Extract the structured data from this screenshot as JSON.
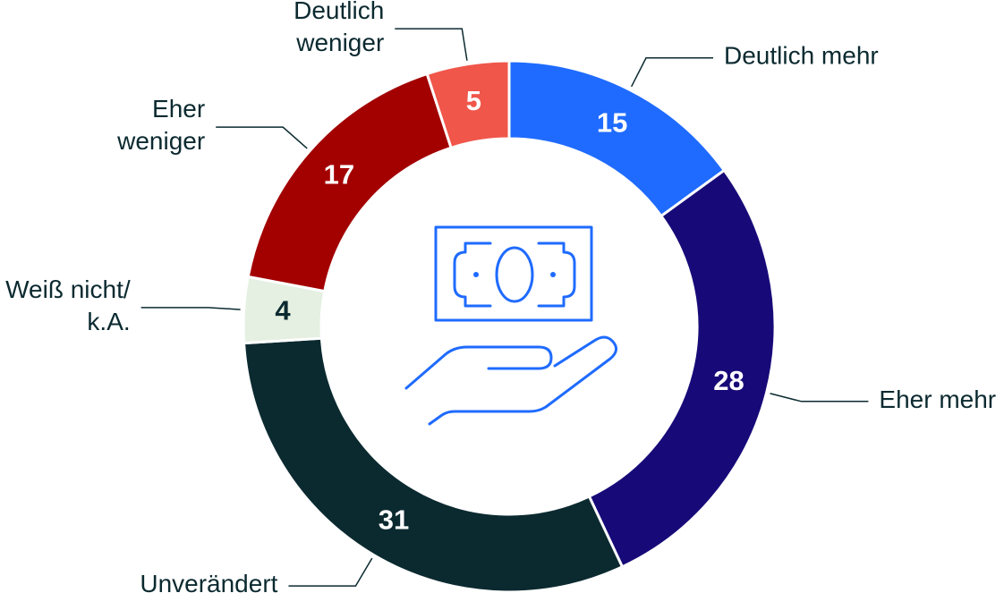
{
  "chart_data": {
    "type": "donut",
    "categories": [
      "Deutlich mehr",
      "Eher mehr",
      "Unverändert",
      "Weiß nicht/\nk.A.",
      "Eher\nweniger",
      "Deutlich\nweniger"
    ],
    "values": [
      15,
      28,
      31,
      4,
      17,
      5
    ],
    "colors": [
      "#1f6bff",
      "#170a78",
      "#0b2a30",
      "#e5f0e2",
      "#a30000",
      "#f0564a"
    ]
  }
}
